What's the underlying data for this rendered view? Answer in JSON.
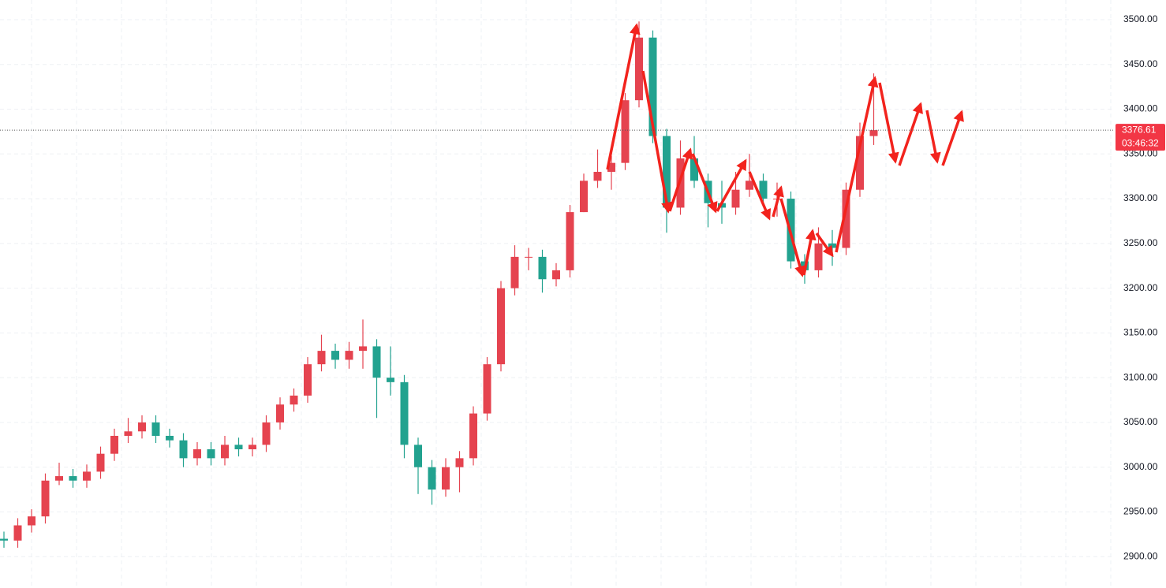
{
  "chart_data": {
    "type": "candlestick",
    "up_color": "#e5434f",
    "down_color": "#22a28f",
    "ylim": [
      2865,
      3522
    ],
    "yticks": [
      {
        "value": 2900,
        "label": "2900.00"
      },
      {
        "value": 2950,
        "label": "2950.00"
      },
      {
        "value": 3000,
        "label": "3000.00"
      },
      {
        "value": 3050,
        "label": "3050.00"
      },
      {
        "value": 3100,
        "label": "3100.00"
      },
      {
        "value": 3150,
        "label": "3150.00"
      },
      {
        "value": 3200,
        "label": "3200.00"
      },
      {
        "value": 3250,
        "label": "3250.00"
      },
      {
        "value": 3300,
        "label": "3300.00"
      },
      {
        "value": 3350,
        "label": "3350.00"
      },
      {
        "value": 3400,
        "label": "3400.00"
      },
      {
        "value": 3450,
        "label": "3450.00"
      },
      {
        "value": 3500,
        "label": "3500.00"
      }
    ],
    "grid": true,
    "last_price": 3376.61,
    "countdown": "03:46:32",
    "open": [
      2920,
      2918,
      2935,
      2945,
      2985,
      2990,
      2985,
      2995,
      3015,
      3035,
      3040,
      3050,
      3035,
      3030,
      3010,
      3020,
      3010,
      3025,
      3020,
      3025,
      3050,
      3070,
      3080,
      3115,
      3130,
      3120,
      3130,
      3135,
      3100,
      3095,
      3025,
      3000,
      2975,
      3000,
      3010,
      3060,
      3115,
      3200,
      3235,
      3235,
      3210,
      3220,
      3285,
      3320,
      3330,
      3340,
      3410,
      3480,
      3370,
      3290,
      3345,
      3320,
      3295,
      3290,
      3310,
      3320,
      3300,
      3300,
      3230,
      3220,
      3250,
      3245,
      3310,
      3370
    ],
    "high": [
      2928,
      2943,
      2953,
      2993,
      3005,
      2998,
      3003,
      3023,
      3043,
      3055,
      3058,
      3058,
      3043,
      3038,
      3028,
      3028,
      3035,
      3033,
      3033,
      3058,
      3078,
      3088,
      3123,
      3148,
      3138,
      3140,
      3165,
      3143,
      3135,
      3103,
      3033,
      3008,
      3010,
      3018,
      3068,
      3123,
      3208,
      3248,
      3245,
      3243,
      3228,
      3293,
      3328,
      3355,
      3348,
      3418,
      3498,
      3488,
      3378,
      3365,
      3370,
      3328,
      3320,
      3330,
      3350,
      3328,
      3318,
      3308,
      3238,
      3268,
      3265,
      3318,
      3385,
      3440
    ],
    "low": [
      2910,
      2910,
      2927,
      2937,
      2980,
      2977,
      2977,
      2987,
      3007,
      3027,
      3032,
      3027,
      3022,
      3000,
      3002,
      3002,
      3002,
      3012,
      3012,
      3017,
      3042,
      3062,
      3072,
      3107,
      3110,
      3110,
      3110,
      3055,
      3080,
      3010,
      2970,
      2958,
      2967,
      2972,
      3002,
      3052,
      3107,
      3192,
      3220,
      3195,
      3202,
      3212,
      3285,
      3312,
      3310,
      3332,
      3402,
      3362,
      3262,
      3282,
      3312,
      3268,
      3272,
      3282,
      3302,
      3292,
      3280,
      3222,
      3205,
      3212,
      3225,
      3237,
      3302,
      3360
    ],
    "close": [
      2918,
      2935,
      2945,
      2985,
      2990,
      2985,
      2995,
      3015,
      3035,
      3040,
      3050,
      3035,
      3030,
      3010,
      3020,
      3010,
      3025,
      3020,
      3025,
      3050,
      3070,
      3080,
      3115,
      3130,
      3120,
      3130,
      3135,
      3100,
      3095,
      3025,
      3000,
      2975,
      3000,
      3010,
      3060,
      3115,
      3200,
      3235,
      3235,
      3210,
      3220,
      3285,
      3320,
      3330,
      3340,
      3410,
      3480,
      3370,
      3290,
      3345,
      3320,
      3295,
      3290,
      3310,
      3320,
      3300,
      3300,
      3230,
      3220,
      3250,
      3245,
      3310,
      3370,
      3376.61
    ]
  }
}
